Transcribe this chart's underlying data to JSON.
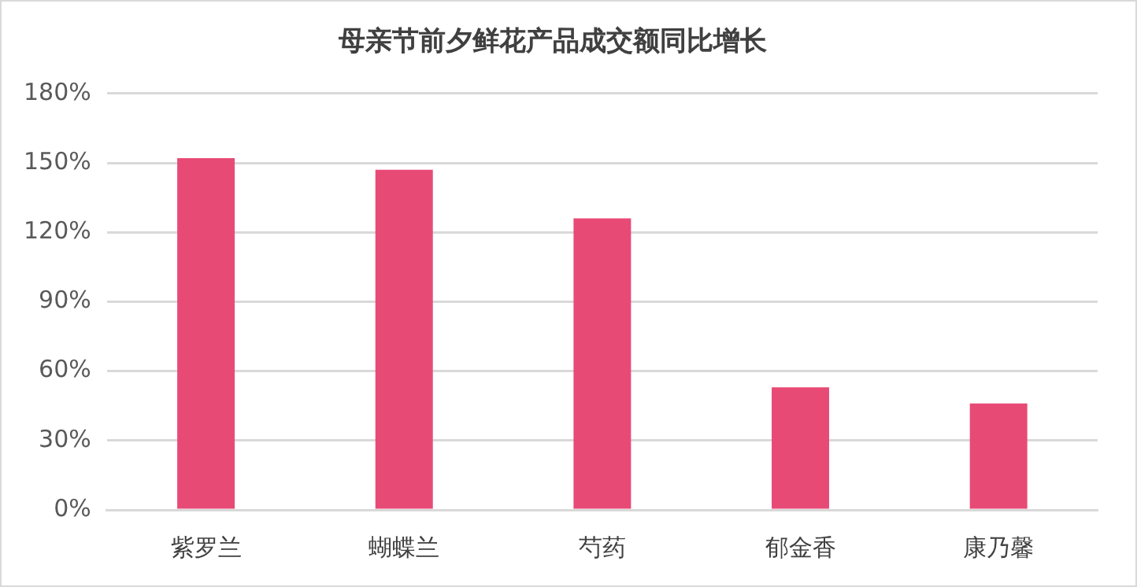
{
  "chart_data": {
    "type": "bar",
    "title": "母亲节前夕鲜花产品成交额同比增长",
    "categories": [
      "紫罗兰",
      "蝴蝶兰",
      "芍药",
      "郁金香",
      "康乃馨"
    ],
    "values": [
      152,
      147,
      126,
      53,
      46
    ],
    "color": "#e84a76",
    "ylim": [
      0,
      180
    ],
    "yticks": [
      {
        "value": 0,
        "label": "0%"
      },
      {
        "value": 30,
        "label": "30%"
      },
      {
        "value": 60,
        "label": "60%"
      },
      {
        "value": 90,
        "label": "90%"
      },
      {
        "value": 120,
        "label": "120%"
      },
      {
        "value": 150,
        "label": "150%"
      },
      {
        "value": 180,
        "label": "180%"
      }
    ],
    "grid": "y",
    "legend": false
  }
}
